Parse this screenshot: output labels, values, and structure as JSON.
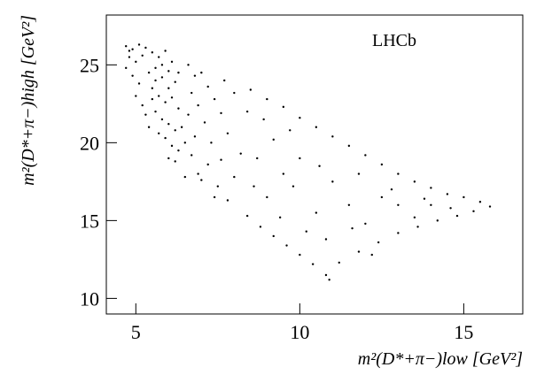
{
  "chart_data": {
    "type": "scatter",
    "x_label": "m²(D*+π−)low [GeV²]",
    "y_label": "m²(D*+π−)high [GeV²]",
    "annotation": "LHCb",
    "color": "#000000",
    "xlim": [
      4.1,
      16.8
    ],
    "xticks": [
      5,
      10,
      15
    ],
    "ylim": [
      9,
      28.2
    ],
    "yticks": [
      10,
      15,
      20,
      25
    ],
    "x": [
      5.5,
      5.7,
      5.9,
      6.1,
      5.6,
      5.8,
      6.0,
      6.2,
      5.5,
      5.7,
      5.9,
      6.1,
      6.3,
      5.6,
      5.8,
      6.0,
      6.2,
      5.9,
      6.1,
      6.3,
      6.0,
      6.2,
      5.7,
      5.5,
      6.4,
      6.5,
      5.8,
      6.0,
      5.6,
      6.3,
      4.7,
      4.9,
      5.1,
      5.3,
      4.8,
      5.0,
      5.2,
      4.7,
      4.9,
      5.1,
      5.0,
      5.2,
      5.3,
      5.4,
      4.8,
      5.4,
      6.6,
      6.8,
      7.0,
      6.7,
      7.2,
      6.9,
      7.4,
      6.6,
      7.1,
      7.6,
      6.8,
      7.3,
      7.8,
      6.7,
      7.2,
      7.6,
      7.0,
      7.5,
      8.0,
      7.8,
      8.2,
      8.4,
      8.0,
      7.7,
      6.5,
      6.9,
      7.4,
      8.5,
      9.0,
      9.5,
      10.0,
      10.5,
      11.0,
      11.5,
      12.0,
      12.5,
      13.0,
      13.5,
      14.0,
      14.5,
      15.0,
      15.5,
      15.8,
      15.3,
      14.8,
      14.2,
      13.6,
      13.0,
      12.4,
      11.8,
      11.2,
      10.8,
      10.4,
      10.0,
      9.6,
      9.2,
      8.8,
      8.4,
      9.0,
      9.5,
      10.0,
      9.8,
      10.5,
      11.0,
      11.5,
      12.0,
      12.5,
      13.0,
      13.5,
      14.0,
      11.8,
      10.6,
      9.2,
      8.7,
      8.9,
      9.7,
      10.8,
      11.6,
      12.8,
      13.8,
      14.6,
      9.4,
      10.2,
      8.6,
      12.2,
      10.9
    ],
    "values": [
      25.8,
      25.5,
      25.9,
      25.2,
      24.8,
      24.2,
      24.6,
      23.9,
      23.5,
      23.0,
      22.6,
      22.9,
      22.2,
      22.0,
      21.5,
      21.2,
      20.8,
      20.3,
      19.8,
      19.5,
      19.0,
      18.8,
      20.6,
      22.8,
      21.0,
      20.0,
      25.0,
      23.5,
      24.0,
      24.5,
      26.2,
      26.0,
      26.3,
      26.1,
      25.5,
      25.2,
      25.6,
      24.8,
      24.3,
      23.8,
      23.0,
      22.4,
      21.8,
      21.0,
      25.9,
      24.5,
      25.0,
      24.3,
      24.5,
      23.2,
      23.6,
      22.4,
      22.8,
      21.8,
      21.3,
      21.9,
      20.4,
      20.0,
      20.6,
      19.2,
      18.6,
      18.9,
      17.6,
      17.2,
      17.8,
      16.3,
      19.3,
      22.0,
      23.2,
      24.0,
      17.8,
      18.0,
      16.5,
      23.4,
      22.8,
      22.3,
      21.6,
      21.0,
      20.4,
      19.8,
      19.2,
      18.6,
      18.0,
      17.5,
      17.1,
      16.7,
      16.5,
      16.2,
      15.9,
      15.6,
      15.3,
      15.0,
      14.6,
      14.2,
      13.6,
      13.0,
      12.3,
      11.5,
      12.2,
      12.8,
      13.4,
      14.0,
      14.6,
      15.3,
      16.5,
      18.0,
      19.0,
      17.2,
      15.5,
      17.5,
      16.0,
      14.8,
      16.5,
      16.0,
      15.2,
      16.0,
      18.0,
      18.5,
      20.2,
      19.0,
      21.5,
      20.8,
      13.8,
      14.5,
      17.0,
      16.4,
      15.8,
      15.2,
      14.3,
      17.2,
      12.8,
      11.2
    ]
  }
}
